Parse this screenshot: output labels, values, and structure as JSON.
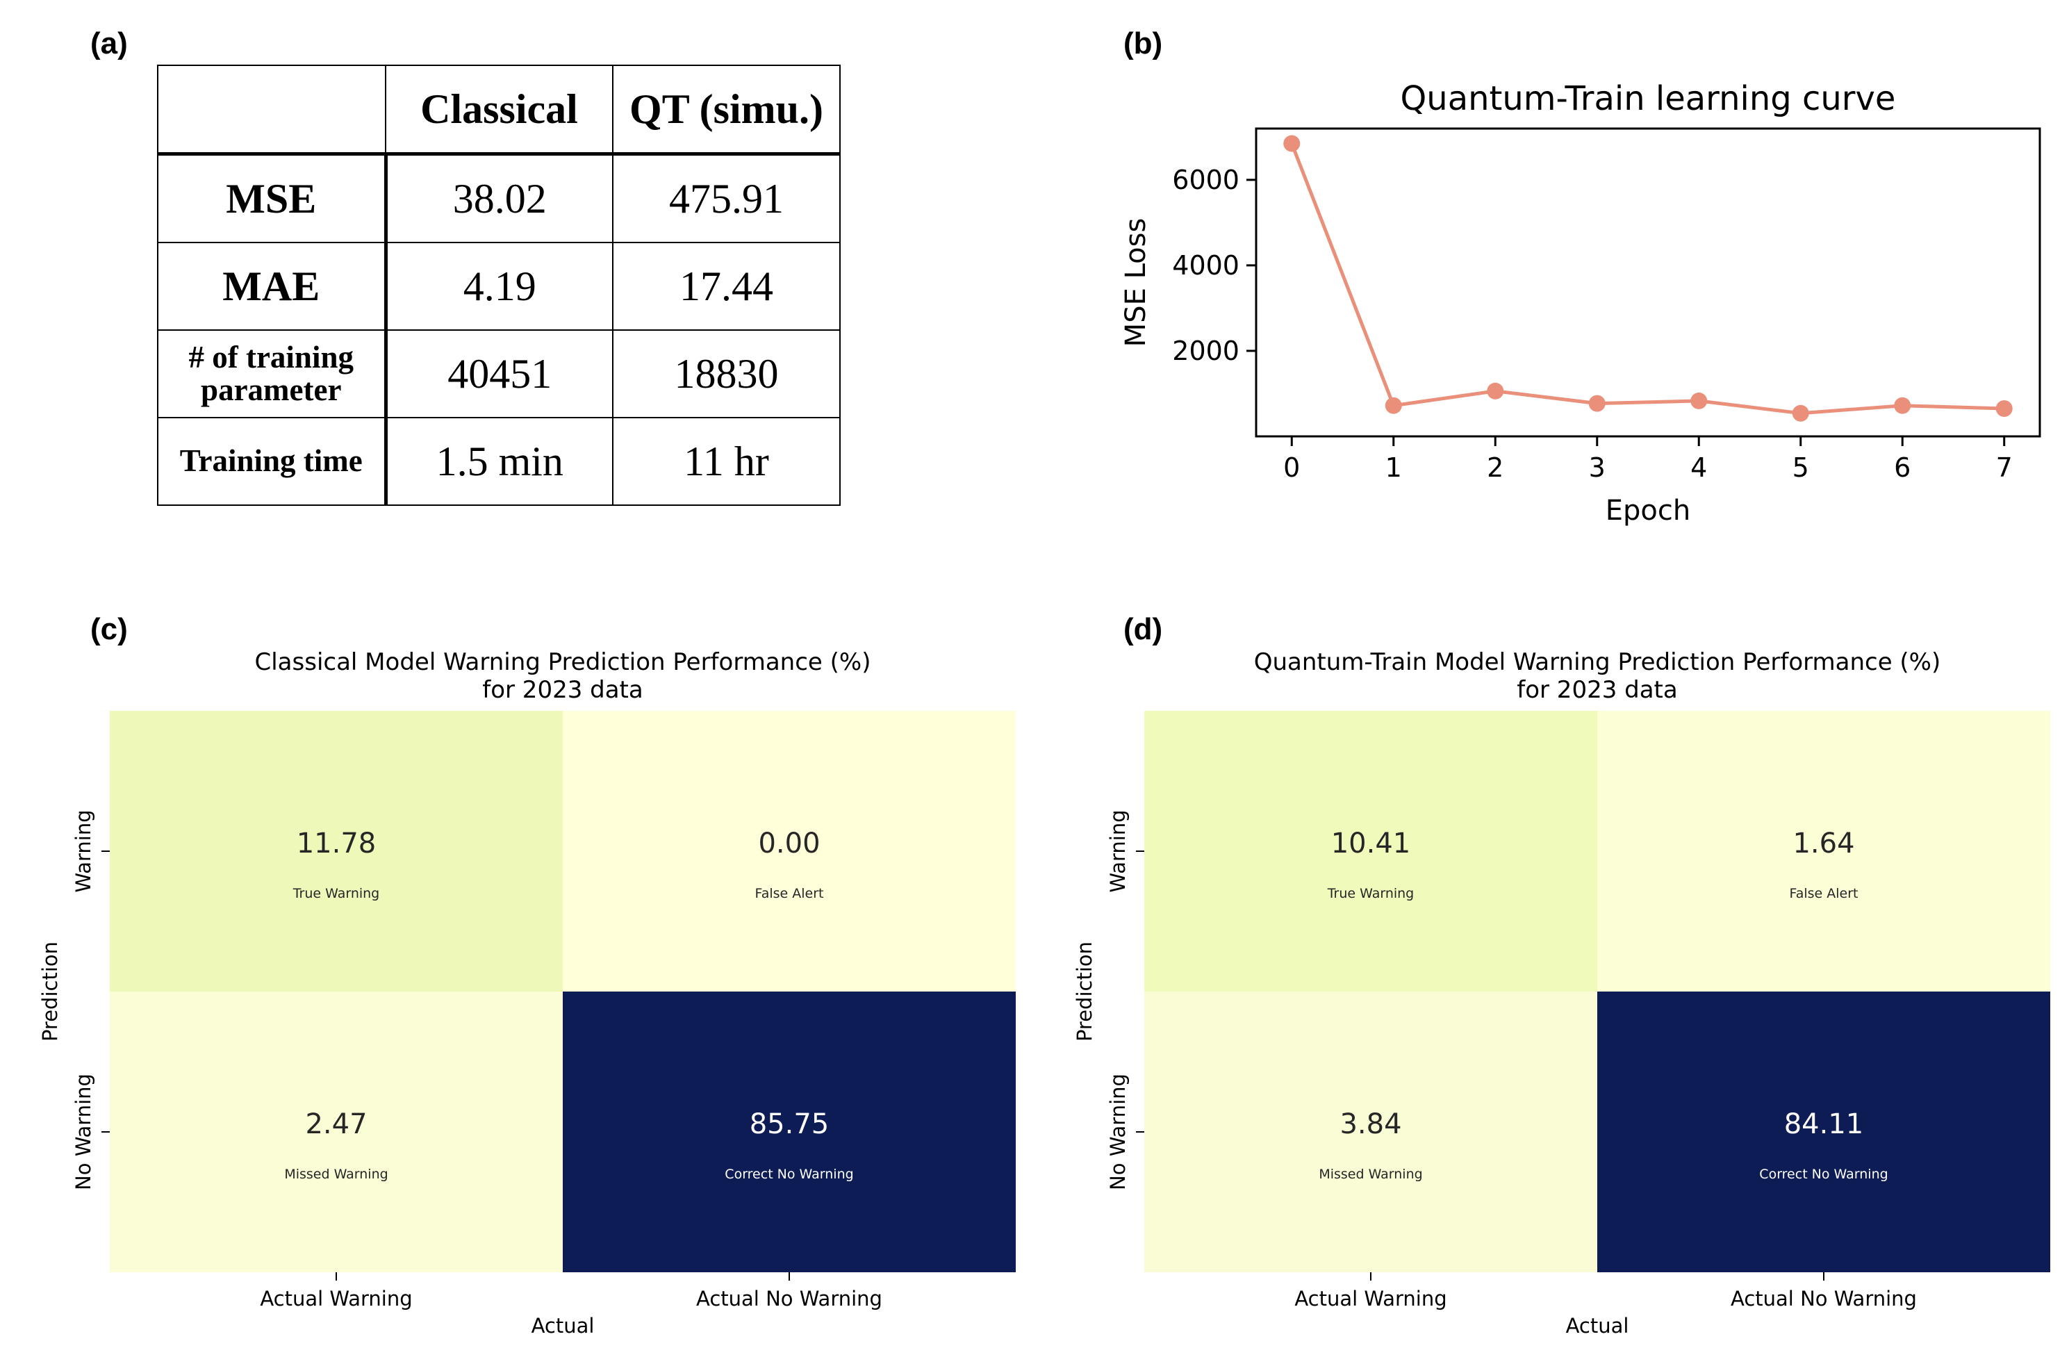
{
  "panels": {
    "a": "(a)",
    "b": "(b)",
    "c": "(c)",
    "d": "(d)"
  },
  "table": {
    "header": [
      "",
      "Classical",
      "QT (simu.)"
    ],
    "rows": [
      {
        "metric": "MSE",
        "classical": "38.02",
        "qt": "475.91"
      },
      {
        "metric": "MAE",
        "classical": "4.19",
        "qt": "17.44"
      },
      {
        "metric": "# of training parameter",
        "classical": "40451",
        "qt": "18830"
      },
      {
        "metric": "Training time",
        "classical": "1.5 min",
        "qt": "11 hr"
      }
    ]
  },
  "chart_data": [
    {
      "type": "line",
      "title": "Quantum-Train learning curve",
      "xlabel": "Epoch",
      "ylabel": "MSE Loss",
      "x": [
        0,
        1,
        2,
        3,
        4,
        5,
        6,
        7
      ],
      "values": [
        6850,
        720,
        1060,
        770,
        830,
        540,
        720,
        650
      ],
      "xlim": [
        -0.35,
        7.35
      ],
      "ylim": [
        0,
        7200
      ],
      "yticks": [
        2000,
        4000,
        6000
      ],
      "color": "#ea907a",
      "grid": false
    },
    {
      "type": "heatmap",
      "title": "Classical Model Warning Prediction Performance (%)",
      "subtitle": "for 2023 data",
      "xlabel": "Actual",
      "ylabel": "Prediction",
      "x_categories": [
        "Actual Warning",
        "Actual No Warning"
      ],
      "y_categories": [
        "Warning",
        "No Warning"
      ],
      "cells": [
        {
          "value": "11.78",
          "label": "True Warning",
          "color": "#edf8b9",
          "text_color": "#262626"
        },
        {
          "value": "0.00",
          "label": "False Alert",
          "color": "#ffffd9",
          "text_color": "#262626"
        },
        {
          "value": "2.47",
          "label": "Missed Warning",
          "color": "#fafdd5",
          "text_color": "#262626"
        },
        {
          "value": "85.75",
          "label": "Correct No Warning",
          "color": "#0d1c54",
          "text_color": "#ffffff"
        }
      ]
    },
    {
      "type": "heatmap",
      "title": "Quantum-Train Model Warning Prediction Performance (%)",
      "subtitle": "for 2023 data",
      "xlabel": "Actual",
      "ylabel": "Prediction",
      "x_categories": [
        "Actual Warning",
        "Actual No Warning"
      ],
      "y_categories": [
        "Warning",
        "No Warning"
      ],
      "cells": [
        {
          "value": "10.41",
          "label": "True Warning",
          "color": "#effabb",
          "text_color": "#262626"
        },
        {
          "value": "1.64",
          "label": "False Alert",
          "color": "#fcfed6",
          "text_color": "#262626"
        },
        {
          "value": "3.84",
          "label": "Missed Warning",
          "color": "#f9fcd4",
          "text_color": "#262626"
        },
        {
          "value": "84.11",
          "label": "Correct No Warning",
          "color": "#0d1c54",
          "text_color": "#ffffff"
        }
      ]
    }
  ]
}
